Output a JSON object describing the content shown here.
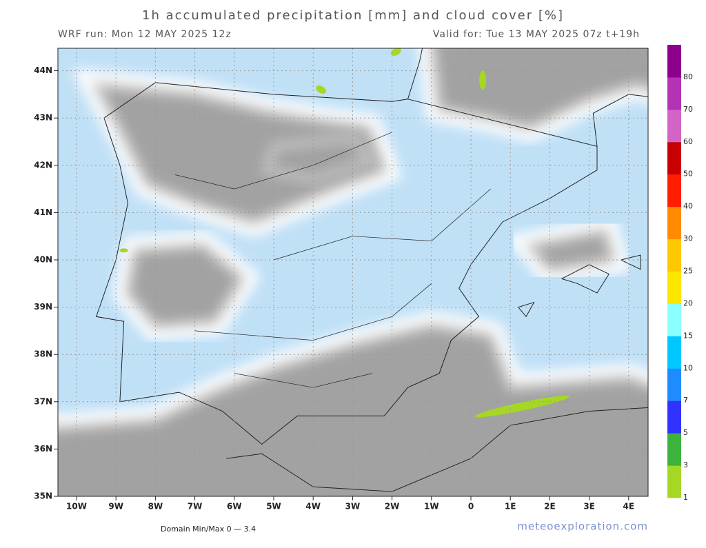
{
  "header": {
    "title": "1h accumulated precipitation [mm] and cloud cover [%]",
    "run": "WRF run: Mon 12 MAY 2025 12z",
    "valid": "Valid for: Tue 13 MAY 2025 07z  t+19h"
  },
  "map": {
    "lat_labels": [
      "35N",
      "36N",
      "37N",
      "38N",
      "39N",
      "40N",
      "41N",
      "42N",
      "43N",
      "44N"
    ],
    "lon_labels": [
      "10W",
      "9W",
      "8W",
      "7W",
      "6W",
      "5W",
      "4W",
      "3W",
      "2W",
      "1W",
      "0",
      "1E",
      "2E",
      "3E",
      "4E"
    ]
  },
  "colorbar": {
    "labels": [
      "1",
      "3",
      "5",
      "7",
      "10",
      "15",
      "20",
      "25",
      "30",
      "40",
      "50",
      "60",
      "70",
      "80"
    ],
    "colors": [
      "#a5d724",
      "#3cb43c",
      "#3232ff",
      "#1e8cff",
      "#00c8ff",
      "#8cffff",
      "#ffe600",
      "#ffc800",
      "#ff8c00",
      "#ff1e00",
      "#c80000",
      "#d264c8",
      "#b432b4",
      "#8c008c"
    ]
  },
  "footer": {
    "minmax": "Domain Min/Max 0 — 3.4",
    "site": "meteoexploration.com"
  }
}
